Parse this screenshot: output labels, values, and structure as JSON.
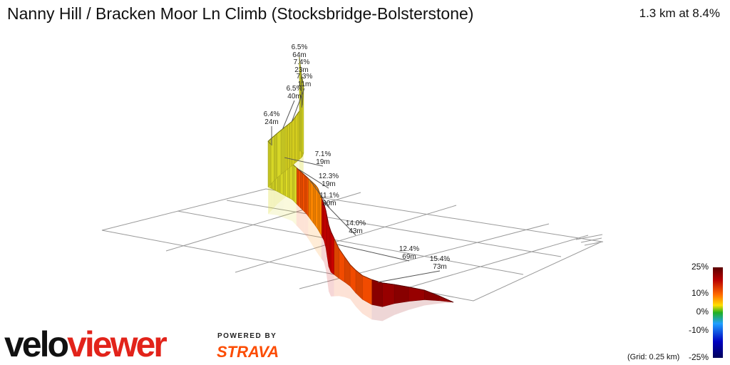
{
  "title": "Nanny Hill / Bracken Moor Ln Climb (Stocksbridge-Bolsterstone)",
  "summary": "1.3 km at 8.4%",
  "brand": {
    "logo_part1": "velo",
    "logo_part2": "viewer",
    "powered_by": "POWERED BY",
    "strava": "STRAVA"
  },
  "grid_note": "(Grid: 0.25 km)",
  "legend": {
    "ticks": [
      "25%",
      "10%",
      "0%",
      "-10%",
      "-25%"
    ],
    "colors": {
      "top": "#7a0000",
      "red": "#e00000",
      "orange": "#ff8c00",
      "yellow": "#e8e800",
      "green": "#30b030",
      "blue": "#0000c0",
      "bottom": "#00006a"
    }
  },
  "chart_data": {
    "type": "area",
    "title": "Nanny Hill / Bracken Moor Ln Climb (Stocksbridge-Bolsterstone)",
    "total_distance_km": 1.3,
    "average_gradient_pct": 8.4,
    "grid_spacing_km": 0.25,
    "color_scale_pct": [
      -25,
      -10,
      0,
      10,
      25
    ],
    "segments": [
      {
        "gradient_pct": 15.4,
        "length_m": 73
      },
      {
        "gradient_pct": 12.4,
        "length_m": 69
      },
      {
        "gradient_pct": 14.0,
        "length_m": 43
      },
      {
        "gradient_pct": 11.1,
        "length_m": 30
      },
      {
        "gradient_pct": 12.3,
        "length_m": 19
      },
      {
        "gradient_pct": 7.1,
        "length_m": 19
      },
      {
        "gradient_pct": 6.4,
        "length_m": 24
      },
      {
        "gradient_pct": 6.5,
        "length_m": 40
      },
      {
        "gradient_pct": 7.3,
        "length_m": 11
      },
      {
        "gradient_pct": 7.4,
        "length_m": 23
      },
      {
        "gradient_pct": 6.5,
        "length_m": 64
      }
    ],
    "labels": [
      {
        "gradient": "15.4%",
        "length": "73m"
      },
      {
        "gradient": "12.4%",
        "length": "69m"
      },
      {
        "gradient": "14.0%",
        "length": "43m"
      },
      {
        "gradient": "11.1%",
        "length": "30m"
      },
      {
        "gradient": "12.3%",
        "length": "19m"
      },
      {
        "gradient": "7.1%",
        "length": "19m"
      },
      {
        "gradient": "6.4%",
        "length": "24m"
      },
      {
        "gradient": "6.5%",
        "length": "40m"
      },
      {
        "gradient": "7.3%",
        "length": "11m"
      },
      {
        "gradient": "7.4%",
        "length": "23m"
      },
      {
        "gradient": "6.5%",
        "length": "64m"
      }
    ]
  }
}
